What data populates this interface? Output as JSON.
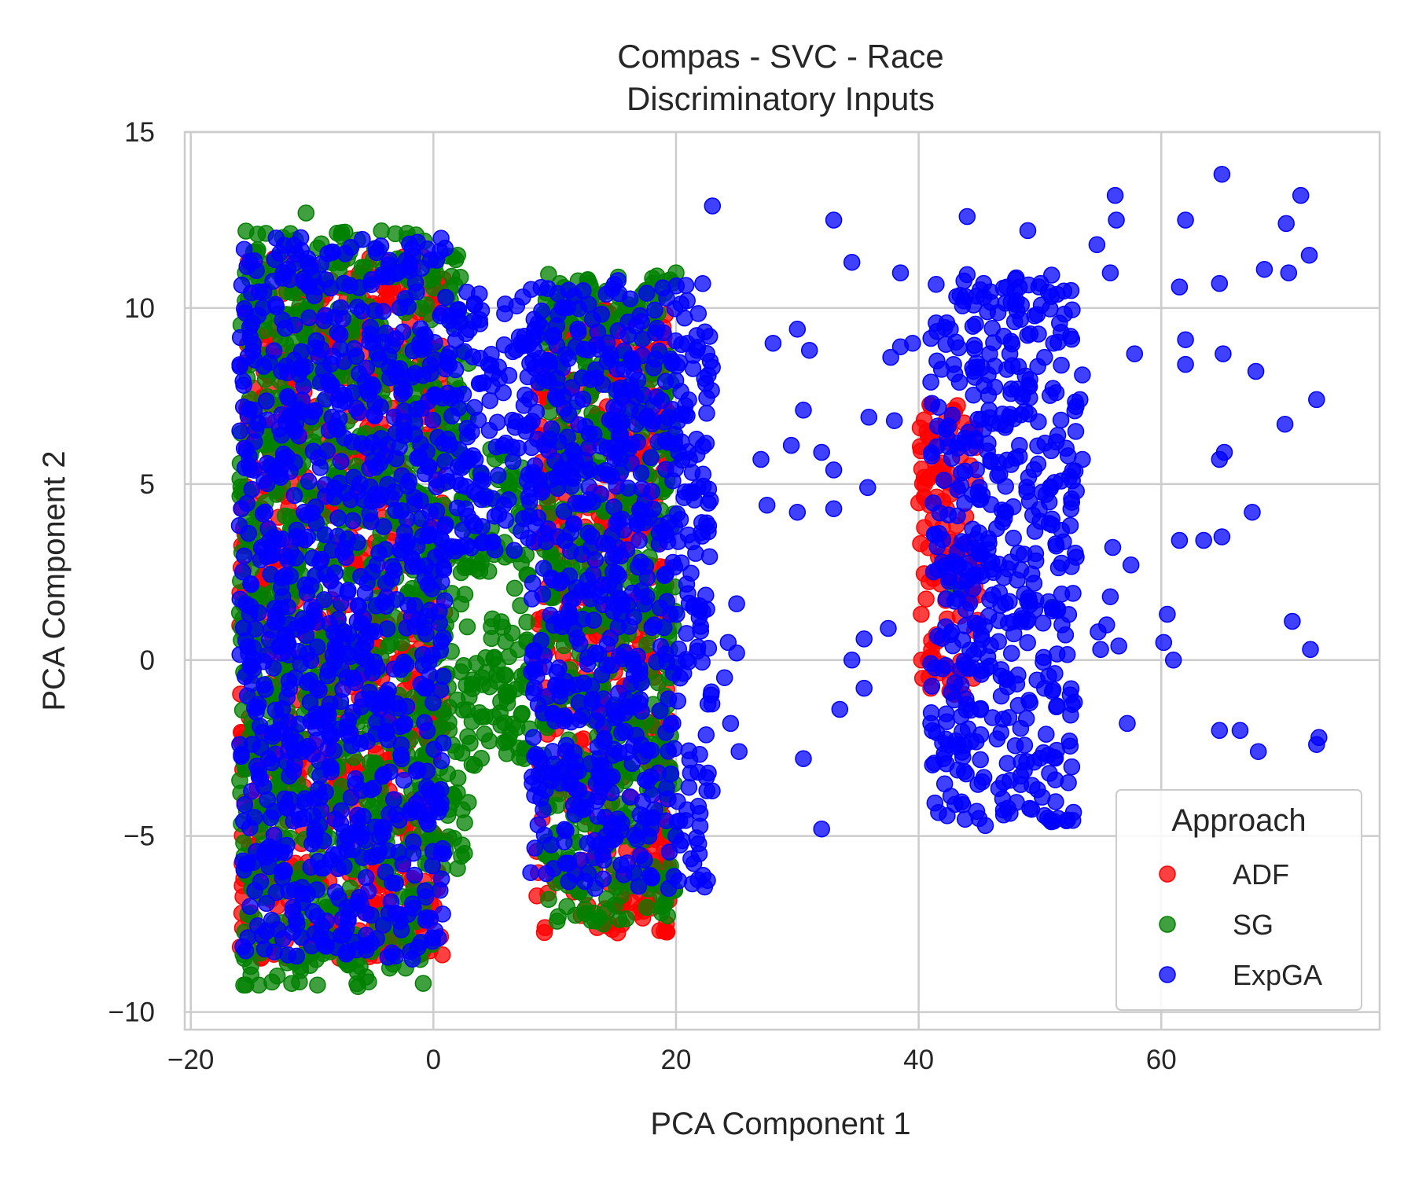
{
  "chart_data": {
    "type": "scatter",
    "title_line1": "Compas - SVC - Race",
    "title_line2": "Discriminatory Inputs",
    "xlabel": "PCA Component 1",
    "ylabel": "PCA Component 2",
    "xlim": [
      -20.5,
      78
    ],
    "ylim": [
      -10.5,
      15
    ],
    "xticks": [
      -20,
      0,
      20,
      40,
      60
    ],
    "xtick_labels": [
      "−20",
      "0",
      "20",
      "40",
      "60"
    ],
    "yticks": [
      -10,
      -5,
      0,
      5,
      10,
      15
    ],
    "ytick_labels": [
      "−10",
      "−5",
      "0",
      "5",
      "10",
      "15"
    ],
    "grid": true,
    "legend": {
      "title": "Approach",
      "placement": "lower-right"
    },
    "series": [
      {
        "name": "ADF",
        "color": "#ff0000",
        "clusters": [
          {
            "x": [
              -16,
              1
            ],
            "y": [
              -8.5,
              11.5
            ]
          },
          {
            "x": [
              8.5,
              19.5
            ],
            "y": [
              -7.8,
              10
            ]
          },
          {
            "x": [
              40,
              45
            ],
            "y": [
              -1,
              7.3
            ]
          }
        ],
        "points": [
          [
            13.5,
            -7.6
          ],
          [
            15.5,
            -7
          ],
          [
            17,
            -6.6
          ],
          [
            18.5,
            -6.2
          ],
          [
            19,
            -6
          ],
          [
            16,
            -6.5
          ],
          [
            18,
            -5.9
          ],
          [
            17.5,
            -6.3
          ],
          [
            19.2,
            -5.5
          ],
          [
            41,
            7.2
          ],
          [
            40.7,
            6.5
          ],
          [
            40.8,
            0
          ],
          [
            41,
            -0.8
          ],
          [
            41.2,
            4
          ],
          [
            40.5,
            5
          ]
        ]
      },
      {
        "name": "SG",
        "color": "#008000",
        "clusters": [
          {
            "x": [
              -16,
              0
            ],
            "y": [
              -9.3,
              12.2
            ]
          },
          {
            "x": [
              0,
              3
            ],
            "y": [
              -6,
              11.5
            ]
          },
          {
            "x": [
              3,
              8
            ],
            "y": [
              -3,
              6
            ]
          },
          {
            "x": [
              9,
              20
            ],
            "y": [
              -7.5,
              11
            ]
          }
        ],
        "points": [
          [
            -10.5,
            12.7
          ],
          [
            -14.5,
            12.1
          ],
          [
            -15.5,
            11
          ],
          [
            2,
            11.5
          ],
          [
            5,
            3
          ],
          [
            6,
            -1
          ],
          [
            7,
            -2.5
          ],
          [
            5.5,
            -1.5
          ],
          [
            7.5,
            -2.8
          ],
          [
            4,
            -0.5
          ],
          [
            13,
            -7.4
          ],
          [
            11,
            -7
          ],
          [
            12.5,
            -7.2
          ],
          [
            14,
            -7.5
          ],
          [
            9.5,
            -6.8
          ],
          [
            20,
            11
          ],
          [
            19.5,
            10.8
          ],
          [
            51,
            1.5
          ],
          [
            43,
            2
          ]
        ]
      },
      {
        "name": "ExpGA",
        "color": "#0000ff",
        "clusters": [
          {
            "x": [
              -16,
              1
            ],
            "y": [
              -8.5,
              12
            ]
          },
          {
            "x": [
              1,
              8
            ],
            "y": [
              3,
              10.5
            ]
          },
          {
            "x": [
              8,
              23
            ],
            "y": [
              -6.5,
              10.8
            ]
          },
          {
            "x": [
              41,
              53
            ],
            "y": [
              3,
              11
            ]
          },
          {
            "x": [
              41,
              53
            ],
            "y": [
              -4.6,
              3
            ]
          }
        ],
        "points": [
          [
            23,
            12.9
          ],
          [
            30,
            9.4
          ],
          [
            28,
            9
          ],
          [
            31,
            8.8
          ],
          [
            27,
            5.7
          ],
          [
            29.5,
            6.1
          ],
          [
            30.5,
            7.1
          ],
          [
            27.5,
            4.4
          ],
          [
            30,
            4.2
          ],
          [
            32,
            5.9
          ],
          [
            33,
            5.4
          ],
          [
            33,
            4.3
          ],
          [
            35.8,
            4.9
          ],
          [
            35.9,
            6.9
          ],
          [
            33,
            12.5
          ],
          [
            34.5,
            11.3
          ],
          [
            38.5,
            11
          ],
          [
            37.7,
            8.6
          ],
          [
            38,
            6.8
          ],
          [
            39.5,
            9
          ],
          [
            38.5,
            8.9
          ],
          [
            25,
            1.6
          ],
          [
            24.3,
            0.5
          ],
          [
            25,
            0.2
          ],
          [
            24,
            -0.5
          ],
          [
            24.5,
            -1.8
          ],
          [
            25.2,
            -2.6
          ],
          [
            30.5,
            -2.8
          ],
          [
            32,
            -4.8
          ],
          [
            33.5,
            -1.4
          ],
          [
            35.5,
            -0.8
          ],
          [
            34.5,
            0
          ],
          [
            35.5,
            0.6
          ],
          [
            37.5,
            0.9
          ],
          [
            44,
            12.6
          ],
          [
            49,
            12.2
          ],
          [
            54.7,
            11.8
          ],
          [
            56.2,
            13.2
          ],
          [
            56.3,
            12.5
          ],
          [
            55.8,
            11
          ],
          [
            57.8,
            8.7
          ],
          [
            62,
            12.5
          ],
          [
            65,
            13.8
          ],
          [
            68.5,
            11.1
          ],
          [
            70.5,
            11
          ],
          [
            70.3,
            12.4
          ],
          [
            71.5,
            13.2
          ],
          [
            72.2,
            11.5
          ],
          [
            72.8,
            7.4
          ],
          [
            70.2,
            6.7
          ],
          [
            67.8,
            8.2
          ],
          [
            65.1,
            8.7
          ],
          [
            62,
            9.1
          ],
          [
            62,
            8.4
          ],
          [
            64.8,
            10.7
          ],
          [
            61.5,
            10.6
          ],
          [
            64.8,
            5.7
          ],
          [
            65.2,
            5.9
          ],
          [
            67.5,
            4.2
          ],
          [
            65,
            3.5
          ],
          [
            63.5,
            3.4
          ],
          [
            61.5,
            3.4
          ],
          [
            57.5,
            2.7
          ],
          [
            56,
            3.2
          ],
          [
            55.8,
            1.8
          ],
          [
            55.5,
            1
          ],
          [
            54.8,
            0.8
          ],
          [
            56.5,
            0.4
          ],
          [
            55,
            0.3
          ],
          [
            60.5,
            1.3
          ],
          [
            60.2,
            0.5
          ],
          [
            61,
            0
          ],
          [
            70.8,
            1.1
          ],
          [
            72.3,
            0.3
          ],
          [
            57.2,
            -1.8
          ],
          [
            64.8,
            -2
          ],
          [
            66.5,
            -2
          ],
          [
            68,
            -2.6
          ],
          [
            73,
            -2.2
          ],
          [
            72.8,
            -2.4
          ],
          [
            53.3,
            7.4
          ],
          [
            53.5,
            8.1
          ],
          [
            53.5,
            5.7
          ],
          [
            53,
            4.8
          ],
          [
            45.5,
            -4.7
          ],
          [
            47,
            -4.4
          ],
          [
            51.5,
            -4.5
          ],
          [
            43,
            -4.1
          ],
          [
            41,
            -1.8
          ],
          [
            41,
            -0.1
          ]
        ]
      }
    ]
  }
}
